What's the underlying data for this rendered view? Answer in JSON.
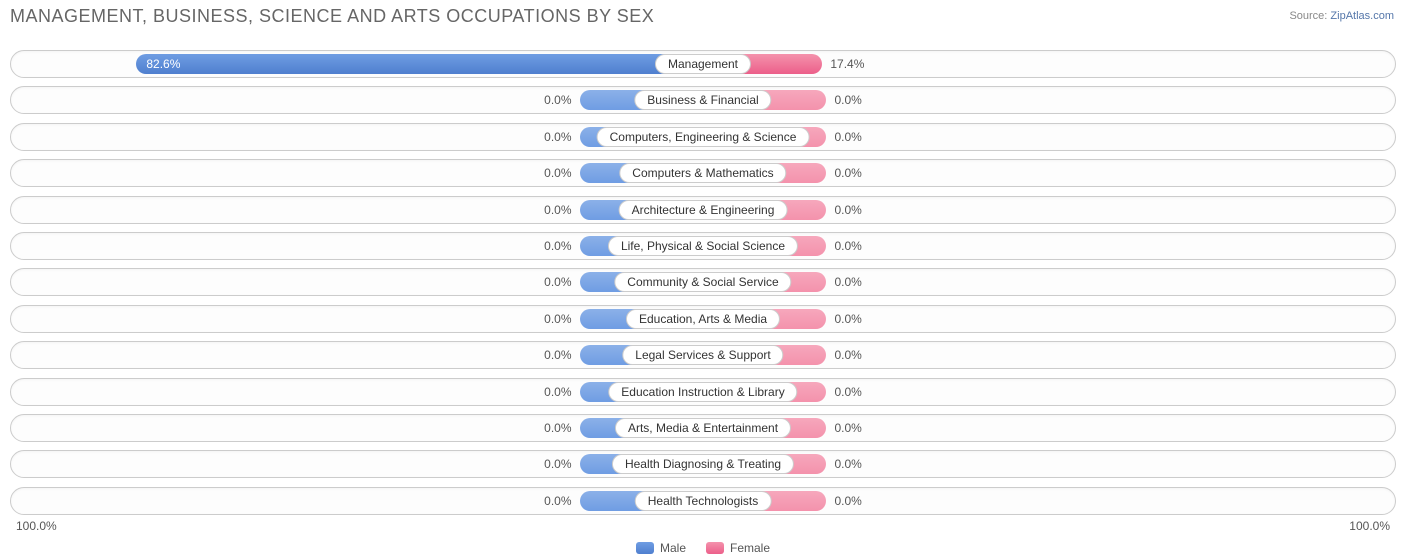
{
  "title": "MANAGEMENT, BUSINESS, SCIENCE AND ARTS OCCUPATIONS BY SEX",
  "source_label": "Source:",
  "source_value": "ZipAtlas.com",
  "axis": {
    "left": "100.0%",
    "right": "100.0%"
  },
  "legend": {
    "male": "Male",
    "female": "Female"
  },
  "colors": {
    "male_fill": "#6f9de3",
    "male_grad": "#4f7fcf",
    "female_fill": "#f492ac",
    "female_grad": "#ec5f8a",
    "title": "#666666",
    "text": "#555555",
    "border": "#cccccc",
    "background": "#ffffff"
  },
  "default_bar_pct": 18,
  "categories": [
    {
      "label": "Management",
      "male_pct": 82.6,
      "female_pct": 17.4,
      "male_label": "82.6%",
      "female_label": "17.4%",
      "male_label_inside": true,
      "female_label_inside": false,
      "male_intense": true,
      "female_intense": true
    },
    {
      "label": "Business & Financial",
      "male_pct": 0.0,
      "female_pct": 0.0,
      "male_label": "0.0%",
      "female_label": "0.0%",
      "male_label_inside": false,
      "female_label_inside": false,
      "male_intense": false,
      "female_intense": false
    },
    {
      "label": "Computers, Engineering & Science",
      "male_pct": 0.0,
      "female_pct": 0.0,
      "male_label": "0.0%",
      "female_label": "0.0%",
      "male_label_inside": false,
      "female_label_inside": false,
      "male_intense": false,
      "female_intense": false
    },
    {
      "label": "Computers & Mathematics",
      "male_pct": 0.0,
      "female_pct": 0.0,
      "male_label": "0.0%",
      "female_label": "0.0%",
      "male_label_inside": false,
      "female_label_inside": false,
      "male_intense": false,
      "female_intense": false
    },
    {
      "label": "Architecture & Engineering",
      "male_pct": 0.0,
      "female_pct": 0.0,
      "male_label": "0.0%",
      "female_label": "0.0%",
      "male_label_inside": false,
      "female_label_inside": false,
      "male_intense": false,
      "female_intense": false
    },
    {
      "label": "Life, Physical & Social Science",
      "male_pct": 0.0,
      "female_pct": 0.0,
      "male_label": "0.0%",
      "female_label": "0.0%",
      "male_label_inside": false,
      "female_label_inside": false,
      "male_intense": false,
      "female_intense": false
    },
    {
      "label": "Community & Social Service",
      "male_pct": 0.0,
      "female_pct": 0.0,
      "male_label": "0.0%",
      "female_label": "0.0%",
      "male_label_inside": false,
      "female_label_inside": false,
      "male_intense": false,
      "female_intense": false
    },
    {
      "label": "Education, Arts & Media",
      "male_pct": 0.0,
      "female_pct": 0.0,
      "male_label": "0.0%",
      "female_label": "0.0%",
      "male_label_inside": false,
      "female_label_inside": false,
      "male_intense": false,
      "female_intense": false
    },
    {
      "label": "Legal Services & Support",
      "male_pct": 0.0,
      "female_pct": 0.0,
      "male_label": "0.0%",
      "female_label": "0.0%",
      "male_label_inside": false,
      "female_label_inside": false,
      "male_intense": false,
      "female_intense": false
    },
    {
      "label": "Education Instruction & Library",
      "male_pct": 0.0,
      "female_pct": 0.0,
      "male_label": "0.0%",
      "female_label": "0.0%",
      "male_label_inside": false,
      "female_label_inside": false,
      "male_intense": false,
      "female_intense": false
    },
    {
      "label": "Arts, Media & Entertainment",
      "male_pct": 0.0,
      "female_pct": 0.0,
      "male_label": "0.0%",
      "female_label": "0.0%",
      "male_label_inside": false,
      "female_label_inside": false,
      "male_intense": false,
      "female_intense": false
    },
    {
      "label": "Health Diagnosing & Treating",
      "male_pct": 0.0,
      "female_pct": 0.0,
      "male_label": "0.0%",
      "female_label": "0.0%",
      "male_label_inside": false,
      "female_label_inside": false,
      "male_intense": false,
      "female_intense": false
    },
    {
      "label": "Health Technologists",
      "male_pct": 0.0,
      "female_pct": 0.0,
      "male_label": "0.0%",
      "female_label": "0.0%",
      "male_label_inside": false,
      "female_label_inside": false,
      "male_intense": false,
      "female_intense": false
    }
  ]
}
